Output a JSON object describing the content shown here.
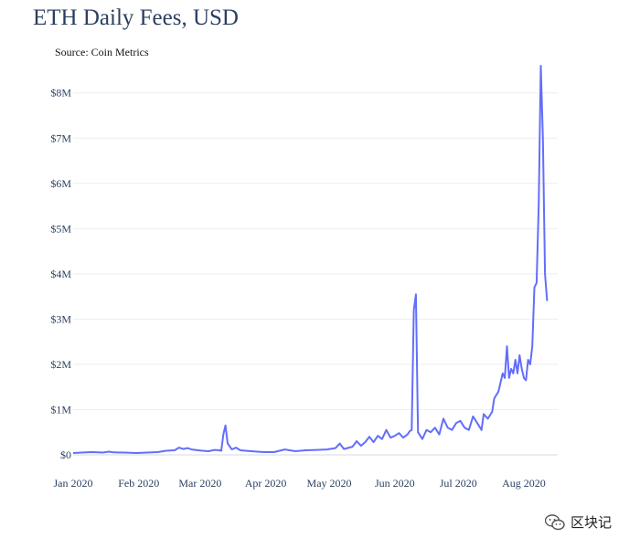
{
  "title": "ETH Daily Fees, USD",
  "source": "Source: Coin Metrics",
  "watermark": {
    "text": "区块记",
    "icon": "wechat-icon"
  },
  "chart_data": {
    "type": "line",
    "title": "ETH Daily Fees, USD",
    "xlabel": "",
    "ylabel": "",
    "ylim": [
      0,
      8600000
    ],
    "y_ticks": [
      {
        "value": 0,
        "label": "$0"
      },
      {
        "value": 1000000,
        "label": "$1M"
      },
      {
        "value": 2000000,
        "label": "$2M"
      },
      {
        "value": 3000000,
        "label": "$3M"
      },
      {
        "value": 4000000,
        "label": "$4M"
      },
      {
        "value": 5000000,
        "label": "$5M"
      },
      {
        "value": 6000000,
        "label": "$6M"
      },
      {
        "value": 7000000,
        "label": "$7M"
      },
      {
        "value": 8000000,
        "label": "$8M"
      }
    ],
    "x_ticks": [
      {
        "value": "2020-01-01",
        "label": "Jan 2020"
      },
      {
        "value": "2020-02-01",
        "label": "Feb 2020"
      },
      {
        "value": "2020-03-01",
        "label": "Mar 2020"
      },
      {
        "value": "2020-04-01",
        "label": "Apr 2020"
      },
      {
        "value": "2020-05-01",
        "label": "May 2020"
      },
      {
        "value": "2020-06-01",
        "label": "Jun 2020"
      },
      {
        "value": "2020-07-01",
        "label": "Jul 2020"
      },
      {
        "value": "2020-08-01",
        "label": "Aug 2020"
      }
    ],
    "xlim": [
      "2020-01-01",
      "2020-08-17"
    ],
    "color": "#636efa",
    "series": [
      {
        "points": [
          [
            "2020-01-01",
            40000
          ],
          [
            "2020-01-05",
            50000
          ],
          [
            "2020-01-10",
            60000
          ],
          [
            "2020-01-15",
            50000
          ],
          [
            "2020-01-18",
            70000
          ],
          [
            "2020-01-20",
            55000
          ],
          [
            "2020-01-25",
            50000
          ],
          [
            "2020-01-31",
            40000
          ],
          [
            "2020-02-05",
            50000
          ],
          [
            "2020-02-10",
            60000
          ],
          [
            "2020-02-14",
            90000
          ],
          [
            "2020-02-18",
            100000
          ],
          [
            "2020-02-20",
            160000
          ],
          [
            "2020-02-22",
            130000
          ],
          [
            "2020-02-24",
            150000
          ],
          [
            "2020-02-26",
            120000
          ],
          [
            "2020-02-29",
            100000
          ],
          [
            "2020-03-02",
            90000
          ],
          [
            "2020-03-05",
            80000
          ],
          [
            "2020-03-08",
            110000
          ],
          [
            "2020-03-10",
            100000
          ],
          [
            "2020-03-11",
            90000
          ],
          [
            "2020-03-12",
            450000
          ],
          [
            "2020-03-13",
            650000
          ],
          [
            "2020-03-14",
            250000
          ],
          [
            "2020-03-16",
            120000
          ],
          [
            "2020-03-18",
            160000
          ],
          [
            "2020-03-20",
            100000
          ],
          [
            "2020-03-25",
            80000
          ],
          [
            "2020-03-31",
            60000
          ],
          [
            "2020-04-05",
            60000
          ],
          [
            "2020-04-10",
            120000
          ],
          [
            "2020-04-15",
            80000
          ],
          [
            "2020-04-20",
            100000
          ],
          [
            "2020-04-25",
            110000
          ],
          [
            "2020-04-30",
            120000
          ],
          [
            "2020-05-04",
            150000
          ],
          [
            "2020-05-06",
            250000
          ],
          [
            "2020-05-08",
            130000
          ],
          [
            "2020-05-12",
            180000
          ],
          [
            "2020-05-14",
            300000
          ],
          [
            "2020-05-16",
            200000
          ],
          [
            "2020-05-18",
            280000
          ],
          [
            "2020-05-20",
            400000
          ],
          [
            "2020-05-22",
            280000
          ],
          [
            "2020-05-24",
            420000
          ],
          [
            "2020-05-26",
            350000
          ],
          [
            "2020-05-28",
            550000
          ],
          [
            "2020-05-30",
            380000
          ],
          [
            "2020-06-01",
            420000
          ],
          [
            "2020-06-03",
            480000
          ],
          [
            "2020-06-05",
            380000
          ],
          [
            "2020-06-07",
            450000
          ],
          [
            "2020-06-08",
            520000
          ],
          [
            "2020-06-09",
            550000
          ],
          [
            "2020-06-10",
            3200000
          ],
          [
            "2020-06-11",
            3550000
          ],
          [
            "2020-06-12",
            500000
          ],
          [
            "2020-06-14",
            350000
          ],
          [
            "2020-06-16",
            550000
          ],
          [
            "2020-06-18",
            500000
          ],
          [
            "2020-06-20",
            600000
          ],
          [
            "2020-06-22",
            450000
          ],
          [
            "2020-06-24",
            800000
          ],
          [
            "2020-06-26",
            600000
          ],
          [
            "2020-06-28",
            550000
          ],
          [
            "2020-06-30",
            700000
          ],
          [
            "2020-07-02",
            750000
          ],
          [
            "2020-07-04",
            600000
          ],
          [
            "2020-07-06",
            550000
          ],
          [
            "2020-07-08",
            850000
          ],
          [
            "2020-07-10",
            700000
          ],
          [
            "2020-07-12",
            550000
          ],
          [
            "2020-07-13",
            900000
          ],
          [
            "2020-07-15",
            800000
          ],
          [
            "2020-07-17",
            950000
          ],
          [
            "2020-07-18",
            1250000
          ],
          [
            "2020-07-20",
            1400000
          ],
          [
            "2020-07-21",
            1600000
          ],
          [
            "2020-07-22",
            1800000
          ],
          [
            "2020-07-23",
            1700000
          ],
          [
            "2020-07-24",
            2400000
          ],
          [
            "2020-07-25",
            1700000
          ],
          [
            "2020-07-26",
            1900000
          ],
          [
            "2020-07-27",
            1800000
          ],
          [
            "2020-07-28",
            2100000
          ],
          [
            "2020-07-29",
            1800000
          ],
          [
            "2020-07-30",
            2200000
          ],
          [
            "2020-07-31",
            1900000
          ],
          [
            "2020-08-01",
            1700000
          ],
          [
            "2020-08-02",
            1650000
          ],
          [
            "2020-08-03",
            2100000
          ],
          [
            "2020-08-04",
            2000000
          ],
          [
            "2020-08-05",
            2400000
          ],
          [
            "2020-08-06",
            3700000
          ],
          [
            "2020-08-07",
            3800000
          ],
          [
            "2020-08-08",
            5500000
          ],
          [
            "2020-08-09",
            8600000
          ],
          [
            "2020-08-10",
            7000000
          ],
          [
            "2020-08-11",
            4000000
          ],
          [
            "2020-08-12",
            3400000
          ]
        ]
      }
    ]
  }
}
